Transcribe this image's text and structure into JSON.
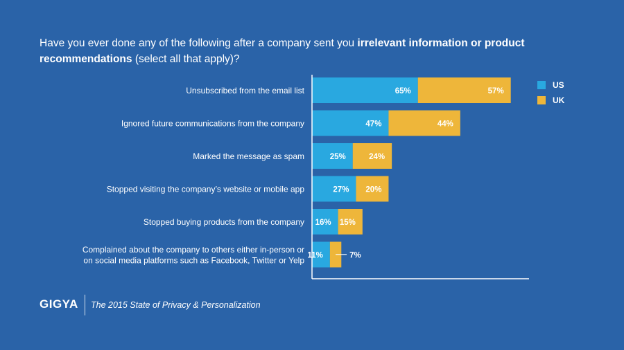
{
  "title": {
    "part1": "Have you ever done any of the following after a company sent you ",
    "bold": "irrelevant information or product recommendations",
    "part2": " (select all that apply)?"
  },
  "legend": {
    "us_label": "US",
    "uk_label": "UK"
  },
  "colors": {
    "background": "#2a63a8",
    "us": "#29a8e0",
    "uk": "#eeb63a",
    "axis": "#ffffff"
  },
  "footer": {
    "logo": "GIGYA",
    "caption": "The 2015 State of Privacy & Personalization"
  },
  "chart_data": {
    "type": "bar",
    "orientation": "horizontal",
    "stacked": true,
    "title": "Have you ever done any of the following after a company sent you irrelevant information or product recommendations (select all that apply)?",
    "categories": [
      [
        "Unsubscribed from the email list"
      ],
      [
        "Ignored future communications from the company"
      ],
      [
        "Marked the message as spam"
      ],
      [
        "Stopped visiting the company’s website or mobile app"
      ],
      [
        "Stopped buying products from the company"
      ],
      [
        "Complained about the company to others either in-person or",
        "on social media platforms such as Facebook, Twitter or Yelp"
      ]
    ],
    "series": [
      {
        "name": "US",
        "values": [
          65,
          47,
          25,
          27,
          16,
          11
        ],
        "labels": [
          "65%",
          "47%",
          "25%",
          "27%",
          "16%",
          "11%"
        ]
      },
      {
        "name": "UK",
        "values": [
          57,
          44,
          24,
          20,
          15,
          7
        ],
        "labels": [
          "57%",
          "44%",
          "24%",
          "20%",
          "15%",
          "7%"
        ]
      }
    ],
    "xlim": [
      0,
      130
    ],
    "xlabel": "",
    "ylabel": "",
    "legend_position": "top-right",
    "grid": false
  }
}
